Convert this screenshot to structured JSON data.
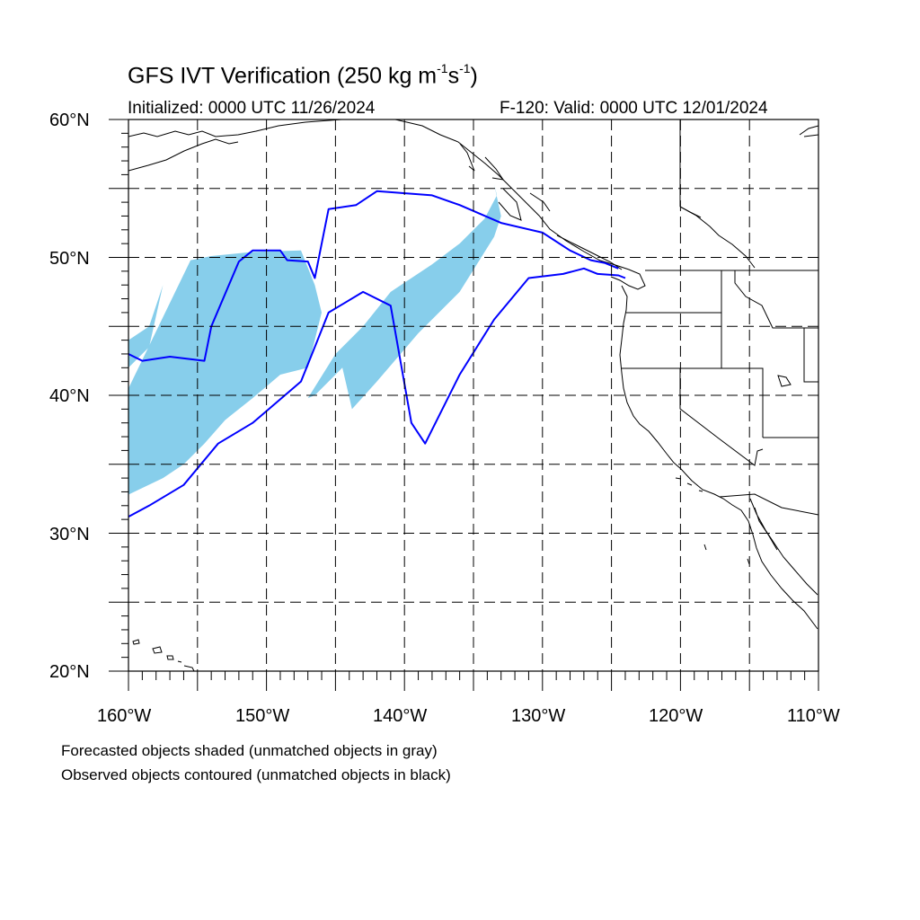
{
  "title": "GFS IVT Verification (250 kg m",
  "title_exp1": "-1",
  "title_mid": "s",
  "title_exp2": "-1",
  "title_end": ")",
  "initialized": "Initialized: 0000 UTC 11/26/2024",
  "valid": "F-120: Valid: 0000 UTC 12/01/2024",
  "lat_labels": [
    "60°N",
    "50°N",
    "40°N",
    "30°N",
    "20°N"
  ],
  "lon_labels": [
    "160°W",
    "150°W",
    "140°W",
    "130°W",
    "120°W",
    "110°W"
  ],
  "legend": {
    "forecast_note": "Forecasted objects shaded (unmatched objects in gray)",
    "observed_note": "Observed objects contoured (unmatched objects in black)"
  },
  "colors": {
    "forecast_fill": "#87ceeb",
    "observed_contour": "#0000ff",
    "coastline": "#000000",
    "grid": "#000000"
  },
  "chart_data": {
    "type": "map",
    "lon_range": [
      -160,
      -110
    ],
    "lat_range": [
      20,
      60
    ],
    "grid": "dashed every 5 degrees",
    "forecast_objects": [
      {
        "lons": [
          -160,
          -155.5,
          -154,
          -151,
          -147.5,
          -146.5,
          -146,
          -147,
          -149,
          -151,
          -153,
          -154.5,
          -156,
          -157.5,
          -160
        ],
        "lats": [
          40.5,
          49.8,
          50.1,
          50.4,
          50.5,
          48,
          46,
          42,
          41.5,
          39.8,
          38.2,
          36.5,
          35,
          34,
          32.8
        ]
      },
      {
        "lons": [
          -160,
          -158.5,
          -157.5,
          -158.5,
          -160
        ],
        "lats": [
          44,
          45,
          48,
          43.5,
          42
        ]
      },
      {
        "lons": [
          -147,
          -145,
          -143,
          -141,
          -138,
          -136,
          -134.2,
          -133.3,
          -133.5,
          -133,
          -133.5,
          -136,
          -139,
          -142,
          -143.8,
          -144.5,
          -145,
          -146.5,
          -147
        ],
        "lats": [
          39.8,
          43,
          45,
          47.5,
          49.5,
          51,
          52.8,
          54.5,
          55.3,
          53,
          51.5,
          47.5,
          44.5,
          41,
          39,
          42,
          41.5,
          40,
          39.8
        ]
      }
    ],
    "observed_contours": [
      {
        "lons": [
          -160,
          -159,
          -157,
          -154.5,
          -154,
          -152,
          -151,
          -149,
          -148.5,
          -147,
          -146.5,
          -145.5,
          -143.5,
          -142,
          -138,
          -136,
          -133,
          -130,
          -128,
          -126.5,
          -125.5,
          -124.5
        ],
        "lats": [
          43,
          42.5,
          42.8,
          42.5,
          45,
          49.7,
          50.5,
          50.5,
          49.8,
          49.7,
          48.5,
          53.5,
          53.8,
          54.8,
          54.5,
          53.8,
          52.5,
          51.8,
          50.5,
          49.8,
          49.6,
          49.2
        ]
      },
      {
        "lons": [
          -160,
          -158.5,
          -156,
          -153.5,
          -151,
          -147.5,
          -146.5,
          -145.5,
          -143,
          -141,
          -139.5,
          -138.5,
          -136,
          -133.5,
          -131,
          -128.5,
          -127,
          -126,
          -124.5,
          -124
        ],
        "lats": [
          31.2,
          32,
          33.5,
          36.5,
          38,
          41,
          43.5,
          46,
          47.5,
          46.5,
          38,
          36.5,
          41.5,
          45.5,
          48.5,
          48.8,
          49.2,
          48.8,
          48.7,
          48.5
        ]
      }
    ]
  }
}
